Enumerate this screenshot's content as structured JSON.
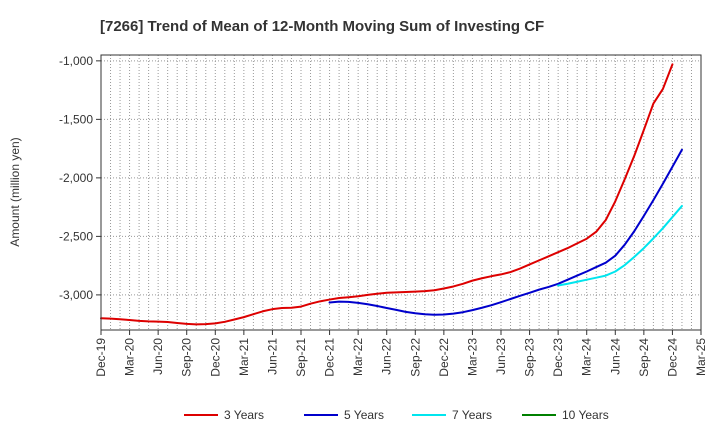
{
  "chart_data": {
    "type": "line",
    "title": "[7266]  Trend of Mean of 12-Month Moving Sum of Investing CF",
    "xlabel": "",
    "ylabel": "Amount (million yen)",
    "ylim": [
      -3300,
      -950
    ],
    "yticks": [
      -1000,
      -1500,
      -2000,
      -2500,
      -3000
    ],
    "ytick_labels": [
      "-1,000",
      "-1,500",
      "-2,000",
      "-2,500",
      "-3,000"
    ],
    "xticks": [
      "Dec-19",
      "Mar-20",
      "Jun-20",
      "Sep-20",
      "Dec-20",
      "Mar-21",
      "Jun-21",
      "Sep-21",
      "Dec-21",
      "Mar-22",
      "Jun-22",
      "Sep-22",
      "Dec-22",
      "Mar-23",
      "Jun-23",
      "Sep-23",
      "Dec-23",
      "Mar-24",
      "Jun-24",
      "Sep-24",
      "Dec-24",
      "Mar-25"
    ],
    "grid": true,
    "legend_position": "bottom",
    "series": [
      {
        "name": "3 Years",
        "color": "#dd0000",
        "start_index": 0,
        "values": [
          -3200,
          -3203,
          -3208,
          -3215,
          -3222,
          -3226,
          -3228,
          -3232,
          -3240,
          -3248,
          -3252,
          -3250,
          -3243,
          -3230,
          -3210,
          -3190,
          -3165,
          -3140,
          -3122,
          -3112,
          -3110,
          -3100,
          -3075,
          -3055,
          -3040,
          -3027,
          -3020,
          -3012,
          -3000,
          -2990,
          -2982,
          -2978,
          -2975,
          -2972,
          -2968,
          -2960,
          -2945,
          -2928,
          -2905,
          -2878,
          -2858,
          -2840,
          -2825,
          -2805,
          -2775,
          -2740,
          -2705,
          -2670,
          -2635,
          -2600,
          -2560,
          -2520,
          -2460,
          -2360,
          -2200,
          -2010,
          -1810,
          -1590,
          -1365,
          -1240,
          -1030
        ]
      },
      {
        "name": "5 Years",
        "color": "#0000cc",
        "start_index": 24,
        "values": [
          -3065,
          -3058,
          -3060,
          -3068,
          -3080,
          -3095,
          -3112,
          -3128,
          -3145,
          -3157,
          -3165,
          -3170,
          -3168,
          -3160,
          -3148,
          -3130,
          -3110,
          -3088,
          -3062,
          -3035,
          -3008,
          -2982,
          -2955,
          -2932,
          -2905,
          -2870,
          -2835,
          -2800,
          -2762,
          -2725,
          -2665,
          -2570,
          -2455,
          -2325,
          -2190,
          -2050,
          -1905,
          -1760
        ]
      },
      {
        "name": "7 Years",
        "color": "#00e5ee",
        "start_index": 48,
        "values": [
          -2920,
          -2905,
          -2888,
          -2870,
          -2853,
          -2835,
          -2800,
          -2745,
          -2675,
          -2600,
          -2517,
          -2430,
          -2335,
          -2240
        ]
      },
      {
        "name": "10 Years",
        "color": "#008000",
        "start_index": 0,
        "values": []
      }
    ]
  }
}
